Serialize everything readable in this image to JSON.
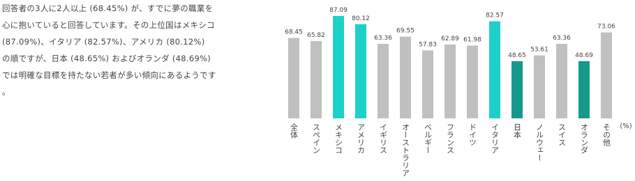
{
  "description": {
    "lines": [
      "回答者の3人に2人以上 (68.45%) が、すでに夢の職業を",
      "心に抱いていると回答しています。その上位国はメキシコ",
      "(87.09%)、イタリア (82.57%)、アメリカ (80.12%)",
      "の順ですが、日本 (48.65%) およびオランダ (48.69%)",
      "では明確な目標を持たない若者が多い傾向にあるようです",
      "。"
    ]
  },
  "chart_data": {
    "type": "bar",
    "categories": [
      "全体",
      "スペイン",
      "メキシコ",
      "アメリカ",
      "イギリス",
      "オーストラリア",
      "ベルギー",
      "フランス",
      "ドイツ",
      "イタリア",
      "日本",
      "ノルウェー",
      "スイス",
      "オランダ",
      "その他"
    ],
    "values": [
      68.45,
      65.82,
      87.09,
      80.12,
      63.36,
      69.55,
      57.83,
      62.89,
      61.98,
      82.57,
      48.65,
      53.61,
      63.36,
      48.69,
      73.06
    ],
    "colors": [
      "#c0c0c0",
      "#c0c0c0",
      "#1dd0c8",
      "#1dd0c8",
      "#c0c0c0",
      "#c0c0c0",
      "#c0c0c0",
      "#c0c0c0",
      "#c0c0c0",
      "#1dd0c8",
      "#16998b",
      "#c0c0c0",
      "#c0c0c0",
      "#16998b",
      "#c0c0c0"
    ],
    "unit_label": "(%)"
  }
}
